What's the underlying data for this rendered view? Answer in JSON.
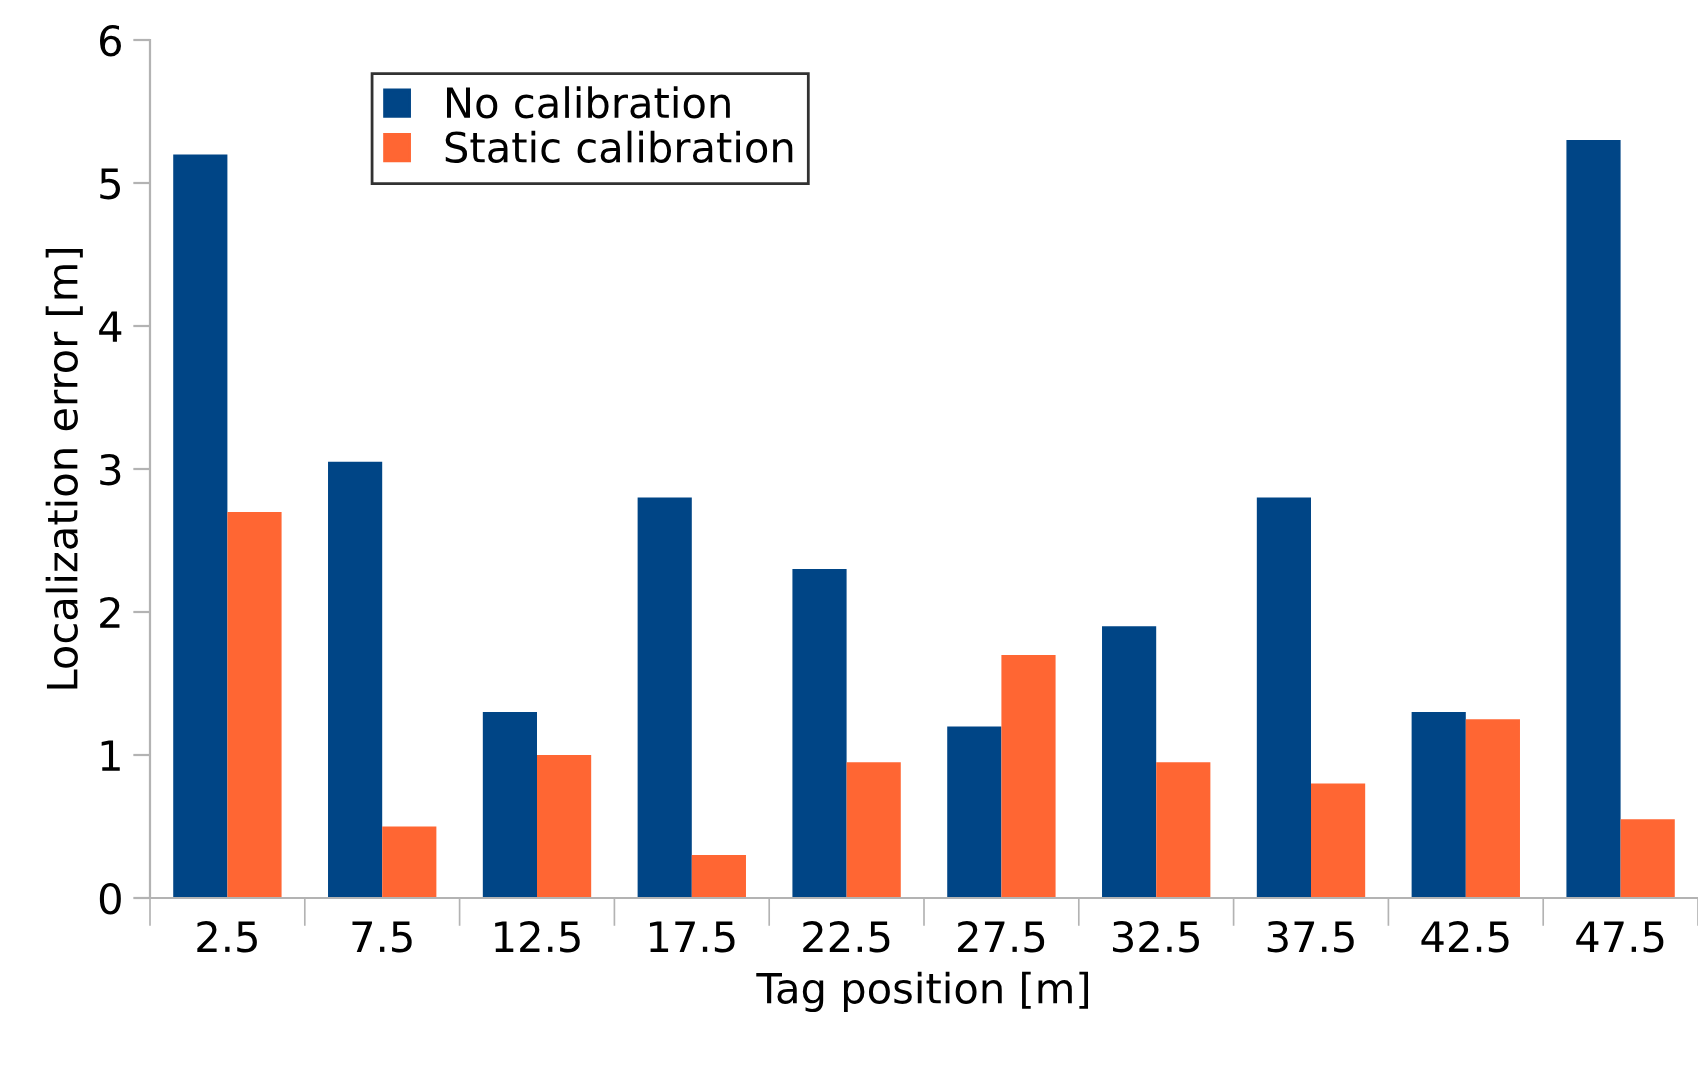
{
  "chart_data": {
    "type": "bar",
    "xlabel": "Tag position [m]",
    "ylabel": "Localization error [m]",
    "categories": [
      "2.5",
      "7.5",
      "12.5",
      "17.5",
      "22.5",
      "27.5",
      "32.5",
      "37.5",
      "42.5",
      "47.5"
    ],
    "series": [
      {
        "name": "No calibration",
        "color": "#004586",
        "values": [
          5.2,
          3.05,
          1.3,
          2.8,
          2.3,
          1.2,
          1.9,
          2.8,
          1.3,
          5.3
        ]
      },
      {
        "name": "Static calibration",
        "color": "#ff6633",
        "values": [
          2.7,
          0.5,
          1.0,
          0.3,
          0.95,
          1.7,
          0.95,
          0.8,
          1.25,
          0.55
        ]
      }
    ],
    "ylim": [
      0,
      6
    ],
    "yticks": [
      0,
      1,
      2,
      3,
      4,
      5,
      6
    ],
    "grid": false,
    "legend": "top left"
  }
}
